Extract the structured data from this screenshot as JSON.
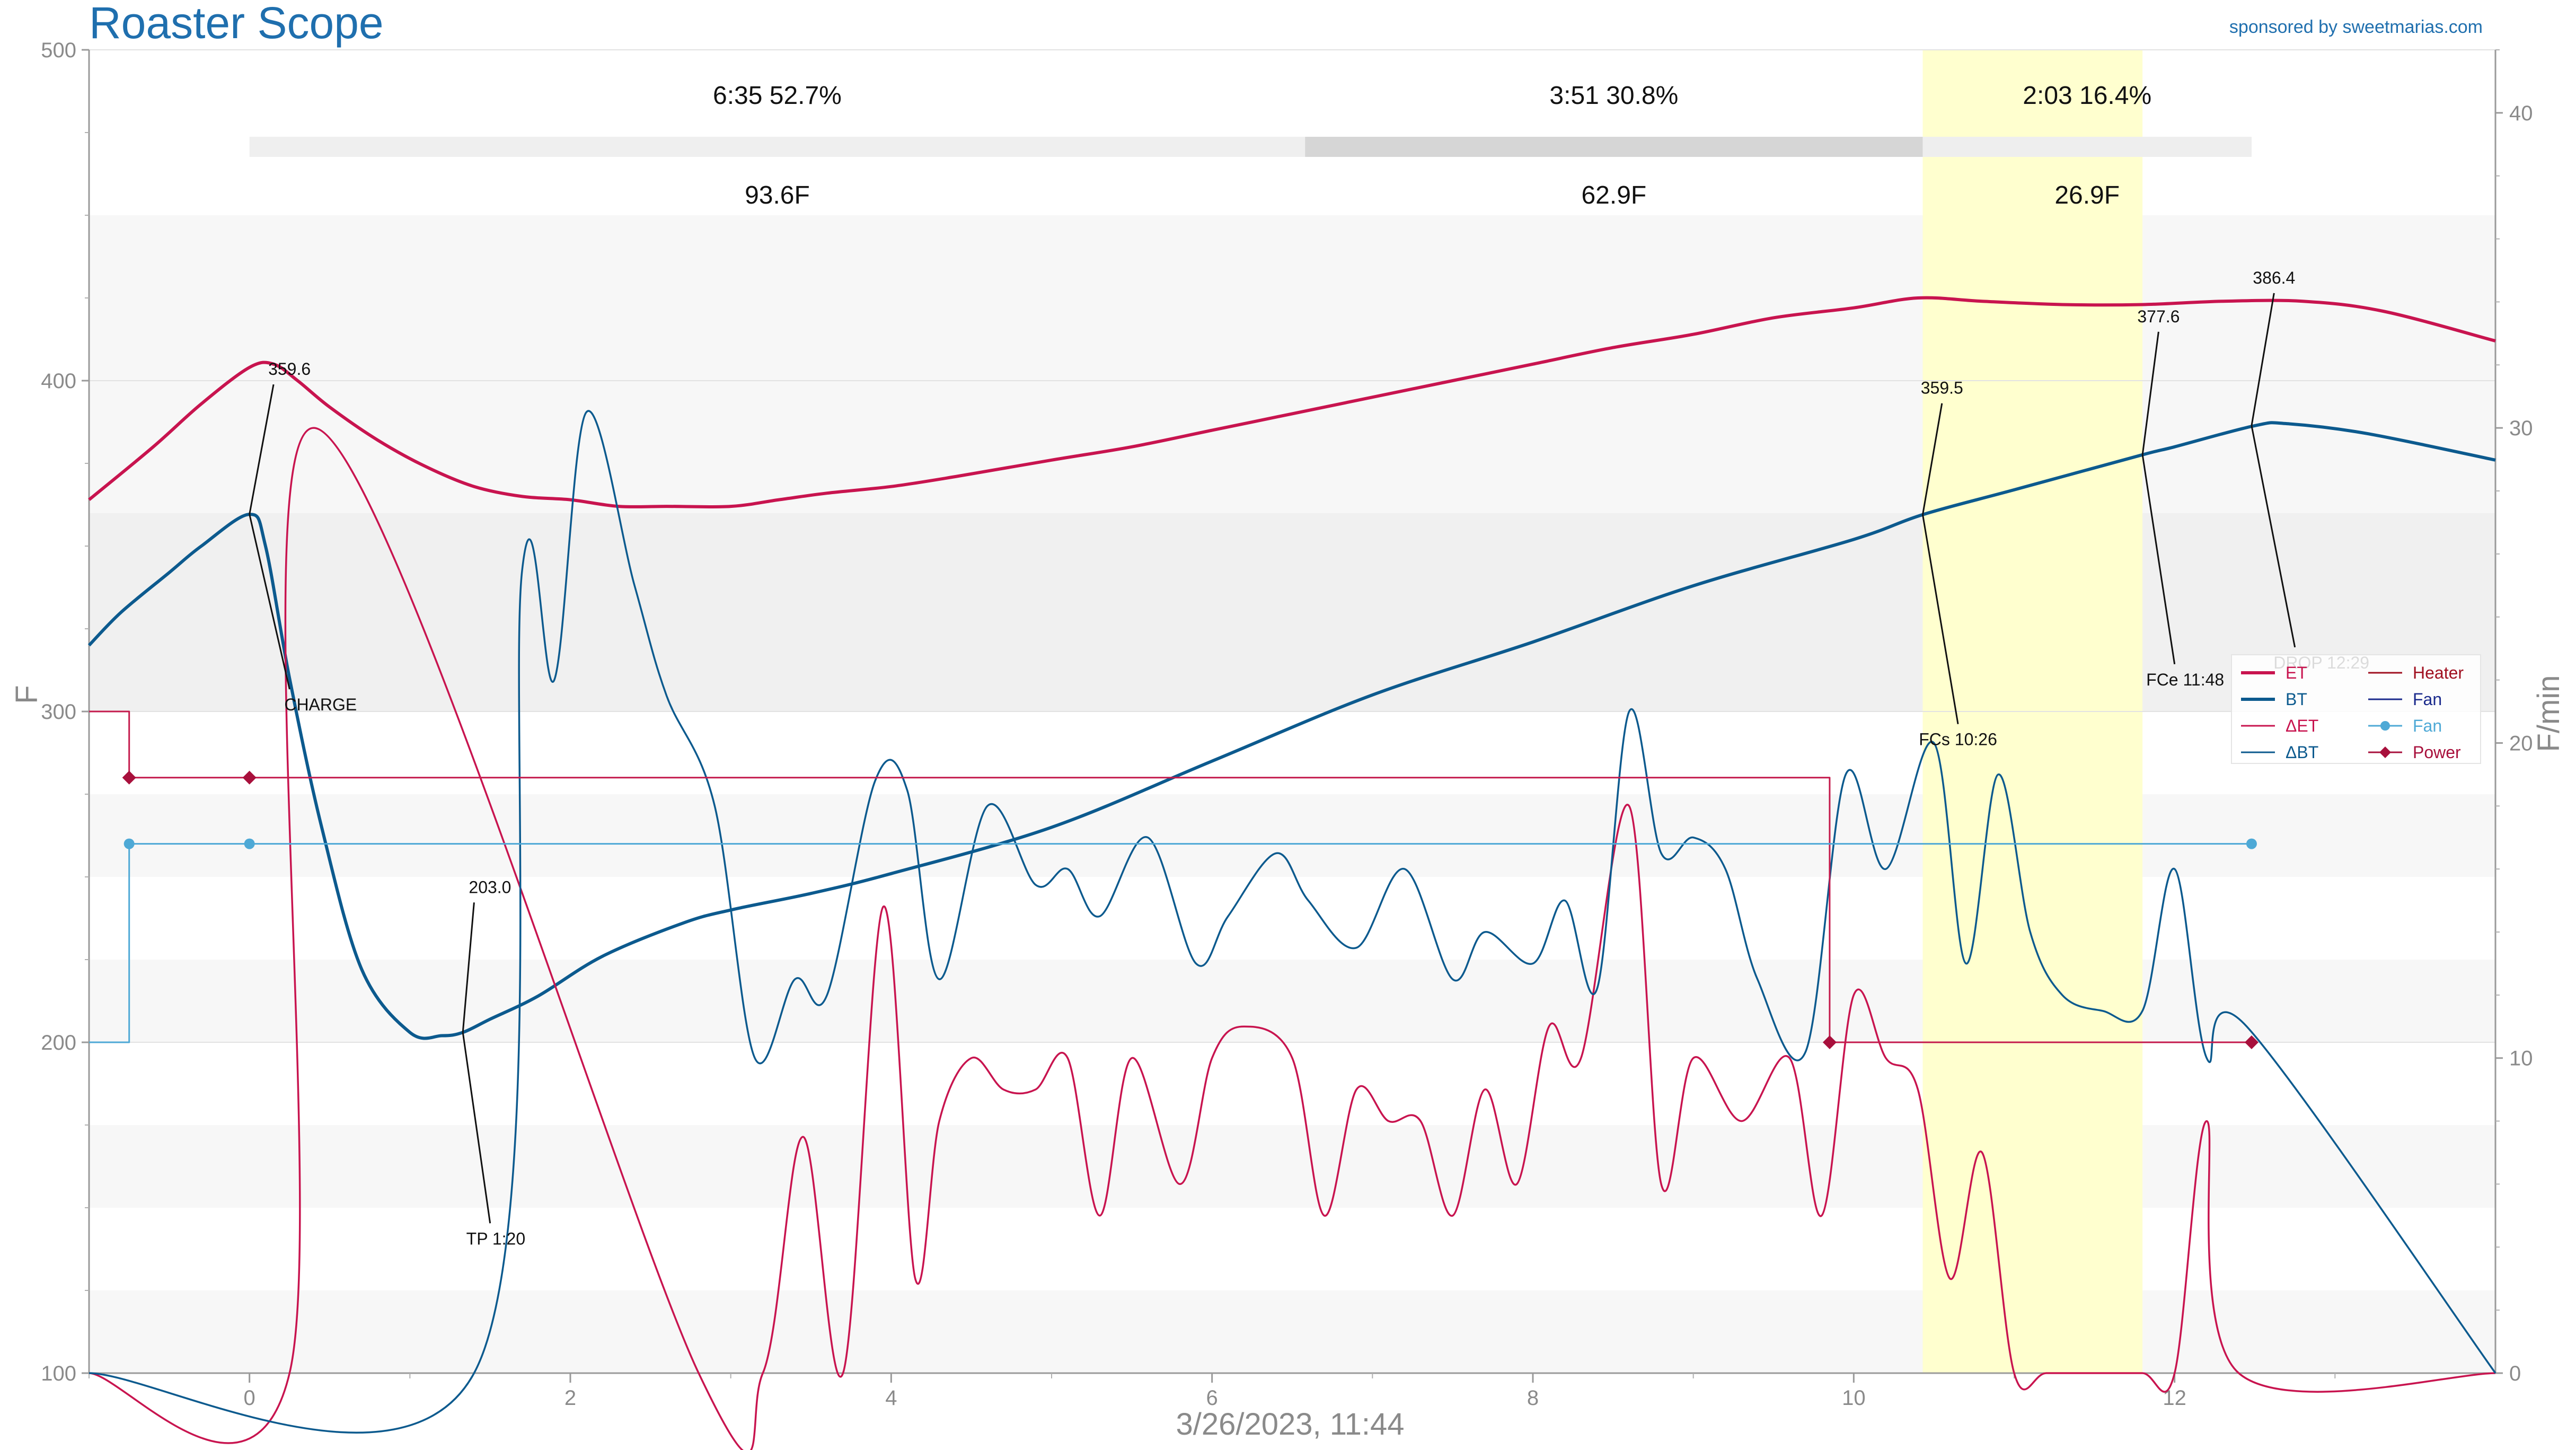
{
  "header": {
    "title": "Roaster Scope",
    "sponsor": "sponsored by sweetmarias.com"
  },
  "colors": {
    "et": "#c8144f",
    "bt": "#0c5a8e",
    "fan": "#4ea9d6",
    "heater": "#c41a4c",
    "power": "#a8103c",
    "fan_legend": "#1a2a8c",
    "heater_legend": "#a01020",
    "first_crack_band": "#ffffcc",
    "title": "#1f6fae"
  },
  "chart_data": {
    "type": "line",
    "title": "Roaster Scope",
    "xlabel": "3/26/2023, 11:44",
    "ylabel": "F",
    "y2label": "F/min",
    "xlim": [
      -1.0,
      14.0
    ],
    "ylim": [
      100,
      500
    ],
    "y2lim": [
      0,
      42
    ],
    "x_ticks": [
      "0",
      "2",
      "4",
      "6",
      "8",
      "10",
      "12"
    ],
    "y_ticks": [
      "100",
      "200",
      "300",
      "400",
      "500"
    ],
    "y2_ticks": [
      "0",
      "10",
      "20",
      "30",
      "40"
    ],
    "grid": true,
    "legend_position": "right",
    "phases": [
      {
        "label": "6:35  52.7%",
        "rise": "93.6F",
        "start": 0.0,
        "end": 6.58
      },
      {
        "label": "3:51  30.8%",
        "rise": "62.9F",
        "start": 6.58,
        "end": 10.43
      },
      {
        "label": "2:03  16.4%",
        "rise": "26.9F",
        "start": 10.43,
        "end": 12.48
      }
    ],
    "first_crack_band": [
      10.43,
      11.8
    ],
    "events": [
      {
        "name": "CHARGE",
        "value": "359.6",
        "x": 0.0,
        "y": 359.6
      },
      {
        "name": "TP 1:20",
        "value": "203.0",
        "x": 1.33,
        "y": 203.0
      },
      {
        "name": "FCs 10:26",
        "value": "359.5",
        "x": 10.43,
        "y": 359.5
      },
      {
        "name": "FCe 11:48",
        "value": "377.6",
        "x": 11.8,
        "y": 377.6
      },
      {
        "name": "DROP 12:29",
        "value": "386.4",
        "x": 12.48,
        "y": 386.4
      }
    ],
    "series": [
      {
        "name": "ET",
        "axis": "left",
        "x": [
          -1.0,
          -0.6,
          -0.3,
          0.0,
          0.15,
          0.3,
          0.5,
          0.8,
          1.1,
          1.4,
          1.7,
          2.0,
          2.3,
          2.6,
          3.0,
          3.3,
          3.6,
          4.0,
          4.4,
          5.0,
          5.5,
          6.0,
          6.5,
          7.0,
          7.5,
          8.0,
          8.5,
          9.0,
          9.5,
          10.0,
          10.4,
          10.8,
          11.3,
          11.8,
          12.3,
          12.8,
          13.3,
          14.0
        ],
        "y": [
          364,
          380,
          393,
          404,
          405,
          400,
          392,
          382,
          374,
          368,
          365,
          364,
          362,
          362,
          362,
          364,
          366,
          368,
          371,
          376,
          380,
          385,
          390,
          395,
          400,
          405,
          410,
          414,
          419,
          422,
          425,
          424,
          423,
          423,
          424,
          424,
          421,
          412
        ]
      },
      {
        "name": "BT",
        "axis": "left",
        "x": [
          -1.0,
          -0.8,
          -0.5,
          -0.3,
          0.0,
          0.1,
          0.25,
          0.45,
          0.7,
          1.0,
          1.2,
          1.33,
          1.5,
          1.8,
          2.2,
          2.7,
          3.0,
          3.5,
          4.0,
          5.0,
          6.0,
          7.0,
          8.0,
          9.0,
          10.0,
          10.43,
          11.0,
          11.8,
          12.0,
          12.5,
          12.7,
          13.2,
          14.0
        ],
        "y": [
          320,
          330,
          342,
          350,
          359.6,
          350,
          310,
          265,
          222,
          203,
          202,
          203,
          207,
          214,
          226,
          236,
          240,
          245,
          251,
          265,
          285,
          305,
          321,
          338,
          352,
          359.5,
          367,
          377.6,
          380,
          386.4,
          387,
          384,
          376
        ]
      },
      {
        "name": "ΔET",
        "axis": "right",
        "x": [
          -1.0,
          0.25,
          0.4,
          2.8,
          3.2,
          3.45,
          3.7,
          3.95,
          4.15,
          4.3,
          4.5,
          4.7,
          4.9,
          5.1,
          5.3,
          5.5,
          5.8,
          6.0,
          6.2,
          6.5,
          6.7,
          6.9,
          7.1,
          7.3,
          7.5,
          7.7,
          7.9,
          8.1,
          8.3,
          8.6,
          8.8,
          9.0,
          9.3,
          9.6,
          9.8,
          10.0,
          10.2,
          10.4,
          10.6,
          10.8,
          11.0,
          11.2,
          11.5,
          11.8,
          12.0,
          12.2,
          12.4,
          14.0
        ],
        "y": [
          0,
          0,
          30,
          0,
          0,
          7.5,
          0,
          14.8,
          3,
          8,
          10,
          9,
          9,
          10,
          5,
          10,
          6,
          10,
          11,
          10,
          5,
          9,
          8,
          8,
          5,
          9,
          6,
          11,
          10,
          18,
          6,
          10,
          8,
          10,
          5,
          12,
          10,
          9,
          3,
          7,
          0,
          0,
          0,
          0,
          0,
          8,
          0,
          0
        ]
      },
      {
        "name": "ΔBT",
        "axis": "right",
        "x": [
          -1.0,
          1.4,
          1.7,
          1.9,
          2.1,
          2.4,
          2.6,
          2.9,
          3.15,
          3.4,
          3.6,
          3.9,
          4.1,
          4.3,
          4.6,
          4.9,
          5.1,
          5.3,
          5.6,
          5.9,
          6.1,
          6.4,
          6.6,
          6.9,
          7.2,
          7.5,
          7.7,
          8.0,
          8.2,
          8.4,
          8.6,
          8.8,
          9.0,
          9.2,
          9.4,
          9.7,
          9.95,
          10.2,
          10.5,
          10.7,
          10.9,
          11.1,
          11.3,
          11.55,
          11.8,
          12.0,
          12.2,
          12.45,
          14.0
        ],
        "y": [
          0,
          0,
          25.5,
          22,
          30.5,
          25,
          21.5,
          18,
          10,
          12.5,
          12,
          18.8,
          18.5,
          12.5,
          18,
          15.5,
          16,
          14.5,
          17,
          13,
          14.5,
          16.5,
          15,
          13.5,
          16,
          12.5,
          14,
          13,
          15,
          12.2,
          21,
          16.5,
          17,
          16,
          12.5,
          10.2,
          19,
          16,
          20,
          13,
          19,
          14,
          12,
          11.5,
          11.5,
          16,
          10,
          11,
          0
        ]
      },
      {
        "name": "Heater",
        "axis": "left",
        "step": true,
        "x": [
          -1.0,
          -0.75,
          -0.75,
          9.85,
          9.85,
          12.48
        ],
        "y": [
          300,
          300,
          280,
          280,
          200,
          200
        ]
      },
      {
        "name": "Fan",
        "axis": "left",
        "step": true,
        "x": [
          -1.0,
          -0.75,
          -0.75,
          12.48
        ],
        "y": [
          200,
          200,
          260,
          260
        ]
      },
      {
        "name": "Power",
        "axis": "left",
        "markers": true,
        "x": [
          -0.75,
          0.0,
          9.85,
          12.48
        ],
        "y": [
          280,
          280,
          200,
          200
        ]
      }
    ],
    "legend": [
      "ET",
      "BT",
      "ΔET",
      "ΔBT",
      "Heater",
      "Fan",
      "Fan",
      "Power"
    ]
  }
}
